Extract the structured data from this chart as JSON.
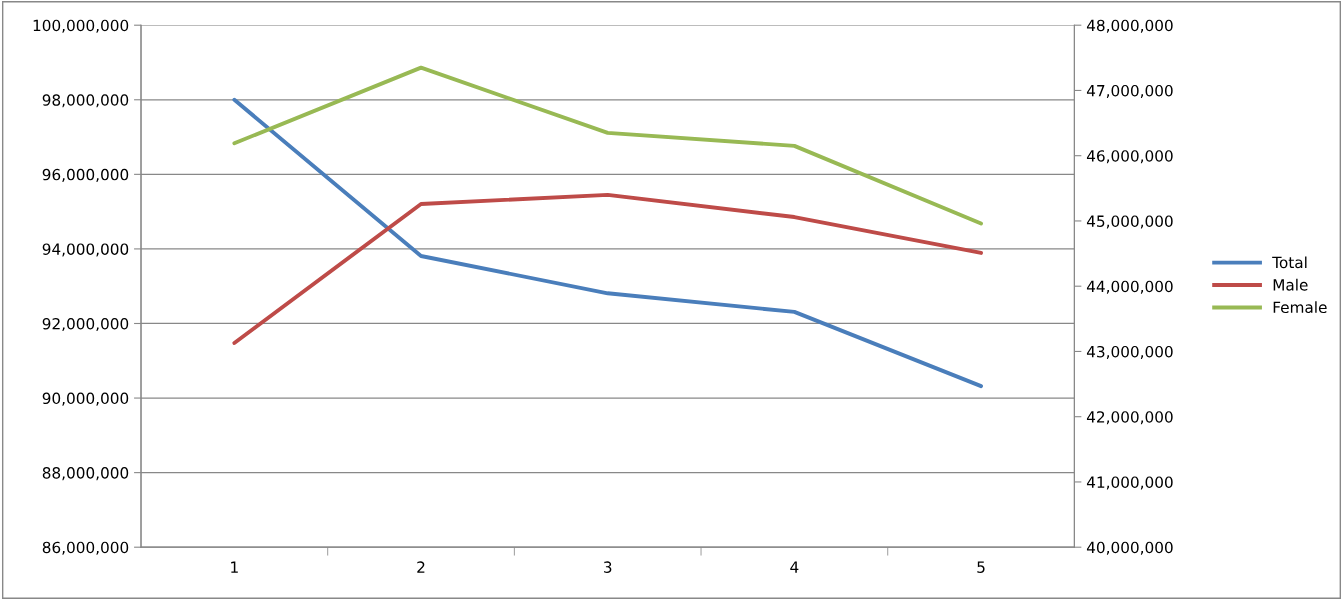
{
  "chart_data": {
    "type": "line",
    "categories": [
      "1",
      "2",
      "3",
      "4",
      "5"
    ],
    "series": [
      {
        "name": "Total",
        "color": "#4a7ebb",
        "values": [
          98000000,
          93810000,
          92810000,
          92310000,
          90320000
        ]
      },
      {
        "name": "Male",
        "color": "#be4b48",
        "axis": "y2",
        "values": [
          43130000,
          45260000,
          45400000,
          45060000,
          44510000
        ]
      },
      {
        "name": "Female",
        "color": "#98b954",
        "axis": "y2",
        "values": [
          46190000,
          47350000,
          46350000,
          46150000,
          44960000
        ]
      }
    ],
    "ylim": [
      86000000,
      100000000
    ],
    "yticks": [
      {
        "value": 86000000,
        "label": "86,000,000"
      },
      {
        "value": 88000000,
        "label": "88,000,000"
      },
      {
        "value": 90000000,
        "label": "90,000,000"
      },
      {
        "value": 92000000,
        "label": "92,000,000"
      },
      {
        "value": 94000000,
        "label": "94,000,000"
      },
      {
        "value": 96000000,
        "label": "96,000,000"
      },
      {
        "value": 98000000,
        "label": "98,000,000"
      },
      {
        "value": 100000000,
        "label": "100,000,000"
      }
    ],
    "y2lim": [
      40000000,
      48000000
    ],
    "y2ticks": [
      {
        "value": 40000000,
        "label": "40,000,000"
      },
      {
        "value": 41000000,
        "label": "41,000,000"
      },
      {
        "value": 42000000,
        "label": "42,000,000"
      },
      {
        "value": 43000000,
        "label": "43,000,000"
      },
      {
        "value": 44000000,
        "label": "44,000,000"
      },
      {
        "value": 45000000,
        "label": "45,000,000"
      },
      {
        "value": 46000000,
        "label": "46,000,000"
      },
      {
        "value": 47000000,
        "label": "47,000,000"
      },
      {
        "value": 48000000,
        "label": "48,000,000"
      }
    ],
    "grid": "y",
    "legend": "right",
    "marker": "none",
    "line_style": "solid"
  }
}
